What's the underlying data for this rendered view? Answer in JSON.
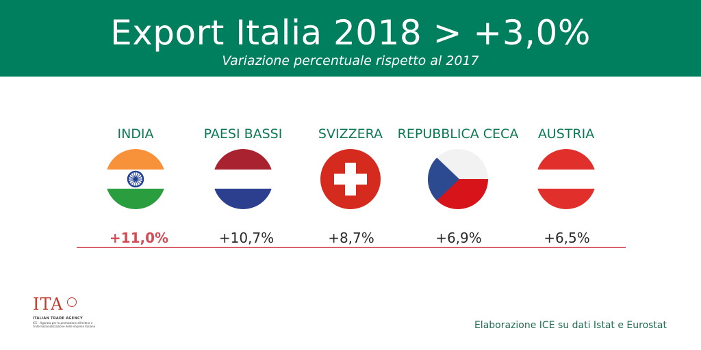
{
  "header": {
    "title": "Export Italia 2018 > +3,0%",
    "subtitle": "Variazione percentuale rispetto al 2017",
    "background_color": "#007f5f"
  },
  "countries": [
    {
      "name": "INDIA",
      "value": "+11,0%",
      "flag": "india-flag-icon",
      "highlight_color": "#d24b55"
    },
    {
      "name": "PAESI BASSI",
      "value": "+10,7%",
      "flag": "netherlands-flag-icon"
    },
    {
      "name": "SVIZZERA",
      "value": "+8,7%",
      "flag": "switzerland-flag-icon"
    },
    {
      "name": "REPUBBLICA CECA",
      "value": "+6,9%",
      "flag": "czech-flag-icon"
    },
    {
      "name": "AUSTRIA",
      "value": "+6,5%",
      "flag": "austria-flag-icon"
    }
  ],
  "logo": {
    "mark": "ITA",
    "name": "ITALIAN TRADE AGENCY",
    "description": "ICE - Agenzia per la promozione all'estero e l'internazionalizzazione delle imprese italiane"
  },
  "source": "Elaborazione ICE su dati Istat e Eurostat"
}
